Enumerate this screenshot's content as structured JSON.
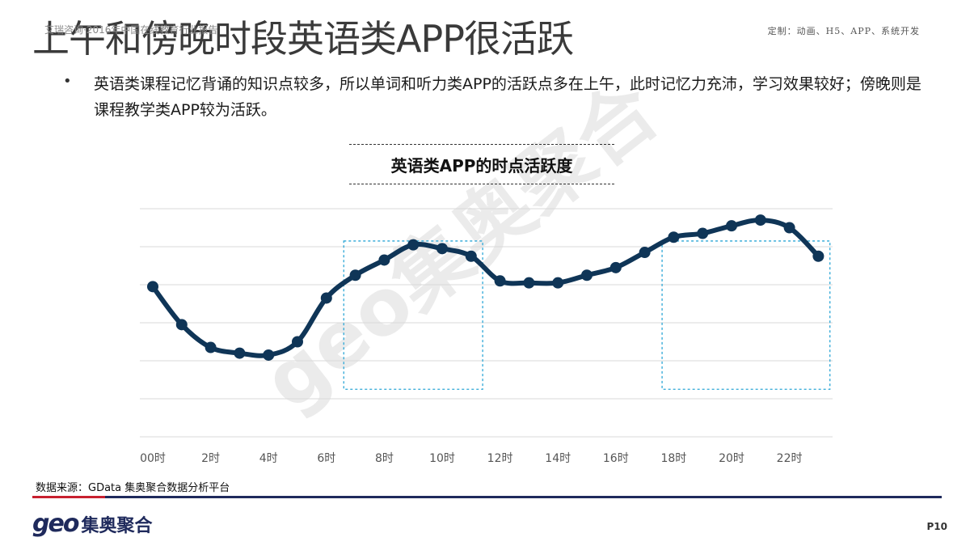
{
  "header": {
    "title": "上午和傍晚时段英语类APP很活跃",
    "faint_text": "艾瑞咨询·2016年中国在线教育行业报告",
    "top_right_note": "定制：动画、H5、APP、系统开发"
  },
  "bullet": {
    "text": "英语类课程记忆背诵的知识点较多，所以单词和听力类APP的活跃点多在上午，此时记忆力充沛，学习效果较好；傍晚则是课程教学类APP较为活跃。"
  },
  "footer": {
    "source": "数据来源：GData 集奥聚合数据分析平台",
    "logo_geo": "geo",
    "logo_cn": "集奥聚合",
    "page_number": "P10"
  },
  "watermark": "geo集奥聚合",
  "colors": {
    "line": "#0f3557",
    "grid": "#d9d9d9",
    "highlight_box": "#2ba6d6",
    "source_red": "#c8202f",
    "source_navy": "#1f2a5c"
  },
  "chart_data": {
    "type": "line",
    "title": "英语类APP的时点活跃度",
    "xlabel": "",
    "ylabel": "",
    "grid": true,
    "legend": "none",
    "y_axis_labels_shown": false,
    "ylim": [
      0,
      60
    ],
    "x": [
      "0时",
      "1时",
      "2时",
      "3时",
      "4时",
      "5时",
      "6时",
      "7时",
      "8时",
      "9时",
      "10时",
      "11时",
      "12时",
      "13时",
      "14时",
      "15时",
      "16时",
      "17时",
      "18时",
      "19时",
      "20时",
      "21时",
      "22时",
      "23时"
    ],
    "tick_labels": [
      "00时",
      "2时",
      "4时",
      "6时",
      "8时",
      "10时",
      "12时",
      "14时",
      "16时",
      "18时",
      "20时",
      "22时"
    ],
    "series": [
      {
        "values": [
          39.5,
          29.5,
          23.5,
          22,
          21.5,
          25,
          36.5,
          42.5,
          46.5,
          50.5,
          49.5,
          47.5,
          41,
          40.5,
          40.5,
          42.5,
          44.5,
          48.5,
          52.5,
          53.5,
          55.5,
          57,
          55,
          47.5
        ]
      }
    ],
    "highlight_ranges": [
      [
        7,
        11
      ],
      [
        18,
        23
      ]
    ]
  }
}
